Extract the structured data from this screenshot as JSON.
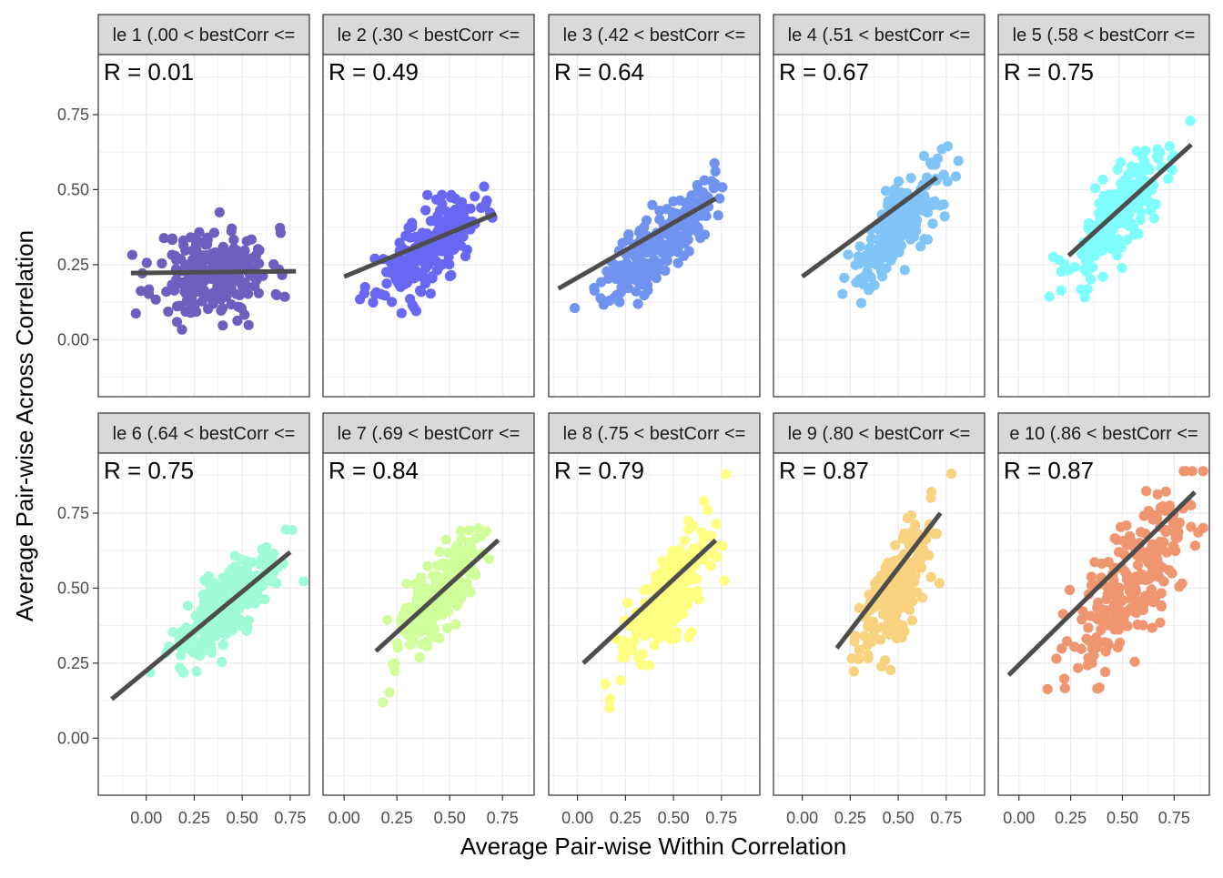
{
  "chart_data": {
    "type": "scatter",
    "layout": "facet-grid",
    "xlabel": "Average Pair-wise Within Correlation",
    "ylabel": "Average Pair-wise Across Correlation",
    "ylim": [
      -0.19,
      0.95
    ],
    "yticks": [
      0.0,
      0.25,
      0.5,
      0.75
    ],
    "ytick_labels": [
      "0.00",
      "0.25",
      "0.50",
      "0.75"
    ],
    "xticks": [
      0.0,
      0.25,
      0.5,
      0.75
    ],
    "xtick_labels": [
      "0.00",
      "0.25",
      "0.50",
      "0.75"
    ],
    "grid": true,
    "trend_line_color": "#4d4d4d",
    "panels": [
      {
        "strip": "le 1 (.00 < bestCorr <=",
        "r_label": "R =  0.01",
        "color": "#6E5FBF",
        "xlim": [
          -0.25,
          0.85
        ],
        "x_center": 0.35,
        "x_sd": 0.15,
        "y_center": 0.22,
        "y_sd": 0.1,
        "slope": 0.01,
        "fit_x": [
          -0.08,
          0.78
        ],
        "fit_y": [
          0.222,
          0.228
        ],
        "n": 230,
        "seed": 11
      },
      {
        "strip": "le 2 (.30 < bestCorr <=",
        "r_label": "R =  0.49",
        "color": "#6767F2",
        "xlim": [
          -0.1,
          0.9
        ],
        "x_center": 0.4,
        "x_sd": 0.12,
        "y_center": 0.3,
        "y_sd": 0.08,
        "slope": 0.46,
        "fit_x": [
          0.0,
          0.72
        ],
        "fit_y": [
          0.21,
          0.42
        ],
        "n": 230,
        "seed": 23
      },
      {
        "strip": "le 3 (.42 < bestCorr <=",
        "r_label": "R =  0.64",
        "color": "#7193F0",
        "xlim": [
          -0.15,
          0.95
        ],
        "x_center": 0.42,
        "x_sd": 0.14,
        "y_center": 0.32,
        "y_sd": 0.08,
        "slope": 0.55,
        "fit_x": [
          -0.1,
          0.72
        ],
        "fit_y": [
          0.17,
          0.47
        ],
        "n": 230,
        "seed": 37
      },
      {
        "strip": "le 4 (.51 < bestCorr <=",
        "r_label": "R =  0.67",
        "color": "#80C4F8",
        "xlim": [
          -0.15,
          0.95
        ],
        "x_center": 0.5,
        "x_sd": 0.12,
        "y_center": 0.38,
        "y_sd": 0.08,
        "slope": 0.7,
        "fit_x": [
          0.0,
          0.7
        ],
        "fit_y": [
          0.21,
          0.54
        ],
        "n": 230,
        "seed": 41
      },
      {
        "strip": "le 5 (.58 < bestCorr <=",
        "r_label": "R =  0.75",
        "color": "#80FEFE",
        "xlim": [
          -0.1,
          0.95
        ],
        "x_center": 0.5,
        "x_sd": 0.13,
        "y_center": 0.42,
        "y_sd": 0.09,
        "slope": 0.7,
        "fit_x": [
          0.25,
          0.86
        ],
        "fit_y": [
          0.28,
          0.65
        ],
        "n": 230,
        "seed": 53
      },
      {
        "strip": "le 6 (.64 < bestCorr <=",
        "r_label": "R =  0.75",
        "color": "#A0FCD6",
        "xlim": [
          -0.25,
          0.85
        ],
        "x_center": 0.4,
        "x_sd": 0.13,
        "y_center": 0.42,
        "y_sd": 0.08,
        "slope": 0.55,
        "fit_x": [
          -0.18,
          0.75
        ],
        "fit_y": [
          0.13,
          0.62
        ],
        "n": 230,
        "seed": 67
      },
      {
        "strip": "le 7 (.69 < bestCorr <=",
        "r_label": "R =  0.84",
        "color": "#CFFE9B",
        "xlim": [
          -0.1,
          0.9
        ],
        "x_center": 0.45,
        "x_sd": 0.11,
        "y_center": 0.48,
        "y_sd": 0.09,
        "slope": 0.8,
        "fit_x": [
          0.15,
          0.73
        ],
        "fit_y": [
          0.29,
          0.66
        ],
        "n": 230,
        "seed": 71
      },
      {
        "strip": "le 8 (.75 < bestCorr <=",
        "r_label": "R =  0.79",
        "color": "#FEFE80",
        "xlim": [
          -0.15,
          0.95
        ],
        "x_center": 0.48,
        "x_sd": 0.12,
        "y_center": 0.47,
        "y_sd": 0.1,
        "slope": 0.75,
        "fit_x": [
          0.03,
          0.72
        ],
        "fit_y": [
          0.25,
          0.66
        ],
        "n": 230,
        "seed": 83
      },
      {
        "strip": "le 9 (.80 < bestCorr <=",
        "r_label": "R =  0.87",
        "color": "#F8D27E",
        "xlim": [
          -0.15,
          0.95
        ],
        "x_center": 0.47,
        "x_sd": 0.1,
        "y_center": 0.48,
        "y_sd": 0.11,
        "slope": 0.95,
        "fit_x": [
          0.18,
          0.72
        ],
        "fit_y": [
          0.3,
          0.75
        ],
        "n": 230,
        "seed": 97
      },
      {
        "strip": "e 10 (.86 < bestCorr <=",
        "r_label": "R =  0.87",
        "color": "#EF9570",
        "xlim": [
          -0.1,
          0.92
        ],
        "x_center": 0.55,
        "x_sd": 0.15,
        "y_center": 0.53,
        "y_sd": 0.14,
        "slope": 0.8,
        "fit_x": [
          -0.05,
          0.85
        ],
        "fit_y": [
          0.21,
          0.82
        ],
        "n": 230,
        "seed": 101
      }
    ]
  }
}
